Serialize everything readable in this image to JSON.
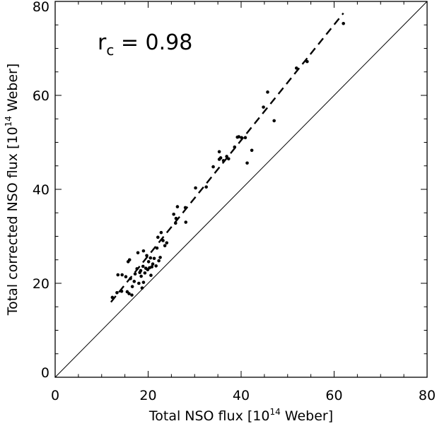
{
  "chart_data": {
    "type": "scatter",
    "xlabel": {
      "prefix": "Total NSO flux ",
      "unit_pre": "[10",
      "unit_exp": "14",
      "unit_post": " Weber]"
    },
    "ylabel": {
      "prefix": "Total corrected NSO flux ",
      "unit_pre": "[10",
      "unit_exp": "14",
      "unit_post": " Weber]"
    },
    "xlim": [
      0,
      80
    ],
    "ylim": [
      0,
      80
    ],
    "xticks": [
      0,
      20,
      40,
      60,
      80
    ],
    "yticks": [
      0,
      20,
      40,
      60,
      80
    ],
    "annotation": {
      "symbol": "r",
      "subscript": "c",
      "text": " = 0.98"
    },
    "grid": false,
    "reference_line": {
      "style": "solid",
      "x": [
        0,
        80
      ],
      "y": [
        0,
        80
      ]
    },
    "fit_line": {
      "style": "dashed",
      "x": [
        12,
        62
      ],
      "y": [
        16,
        77.5
      ]
    },
    "points": [
      [
        12.3,
        17
      ],
      [
        13.3,
        18
      ],
      [
        13.5,
        21.8
      ],
      [
        14.3,
        18.3
      ],
      [
        14.4,
        21.8
      ],
      [
        15.2,
        21.4
      ],
      [
        15.5,
        18.2
      ],
      [
        15.9,
        17.8
      ],
      [
        15.7,
        24.6
      ],
      [
        16.0,
        25.0
      ],
      [
        16.2,
        21.0
      ],
      [
        16.5,
        17.5
      ],
      [
        16.6,
        19.3
      ],
      [
        17.0,
        20.4
      ],
      [
        17.2,
        22.0
      ],
      [
        17.6,
        23.1
      ],
      [
        17.8,
        26.5
      ],
      [
        18.0,
        20.0
      ],
      [
        18.2,
        22.3
      ],
      [
        18.4,
        22.7
      ],
      [
        18.5,
        21.5
      ],
      [
        18.7,
        19.0
      ],
      [
        18.9,
        23.6
      ],
      [
        19.0,
        20.2
      ],
      [
        19.0,
        26.9
      ],
      [
        19.3,
        22.2
      ],
      [
        19.5,
        23.2
      ],
      [
        19.7,
        25.9
      ],
      [
        19.9,
        22.9
      ],
      [
        20.1,
        24.6
      ],
      [
        20.3,
        23.3
      ],
      [
        20.5,
        25.4
      ],
      [
        20.6,
        21.7
      ],
      [
        20.8,
        23.5
      ],
      [
        21.0,
        24.1
      ],
      [
        21.3,
        25.3
      ],
      [
        21.7,
        23.7
      ],
      [
        21.9,
        27.5
      ],
      [
        22.1,
        29.8
      ],
      [
        22.3,
        24.8
      ],
      [
        22.6,
        25.5
      ],
      [
        22.8,
        30.8
      ],
      [
        23.2,
        29.1
      ],
      [
        23.6,
        28.0
      ],
      [
        24.0,
        28.6
      ],
      [
        25.5,
        34.7
      ],
      [
        25.9,
        32.8
      ],
      [
        26.3,
        36.3
      ],
      [
        26.0,
        33.8
      ],
      [
        28.0,
        36.1
      ],
      [
        28.1,
        33.0
      ],
      [
        30.2,
        40.3
      ],
      [
        32.5,
        40.5
      ],
      [
        34.0,
        44.8
      ],
      [
        35.3,
        48.0
      ],
      [
        35.3,
        46.4
      ],
      [
        35.6,
        46.7
      ],
      [
        36.2,
        46.1
      ],
      [
        36.9,
        47.0
      ],
      [
        37.3,
        46.5
      ],
      [
        38.6,
        49.0
      ],
      [
        39.2,
        51.1
      ],
      [
        39.5,
        51.2
      ],
      [
        40.1,
        51.0
      ],
      [
        40.9,
        51.0
      ],
      [
        41.3,
        45.6
      ],
      [
        42.3,
        48.3
      ],
      [
        44.8,
        57.5
      ],
      [
        45.7,
        60.7
      ],
      [
        47.1,
        54.6
      ],
      [
        51.9,
        65.8
      ],
      [
        54.2,
        67.2
      ],
      [
        62.0,
        75.3
      ]
    ]
  }
}
